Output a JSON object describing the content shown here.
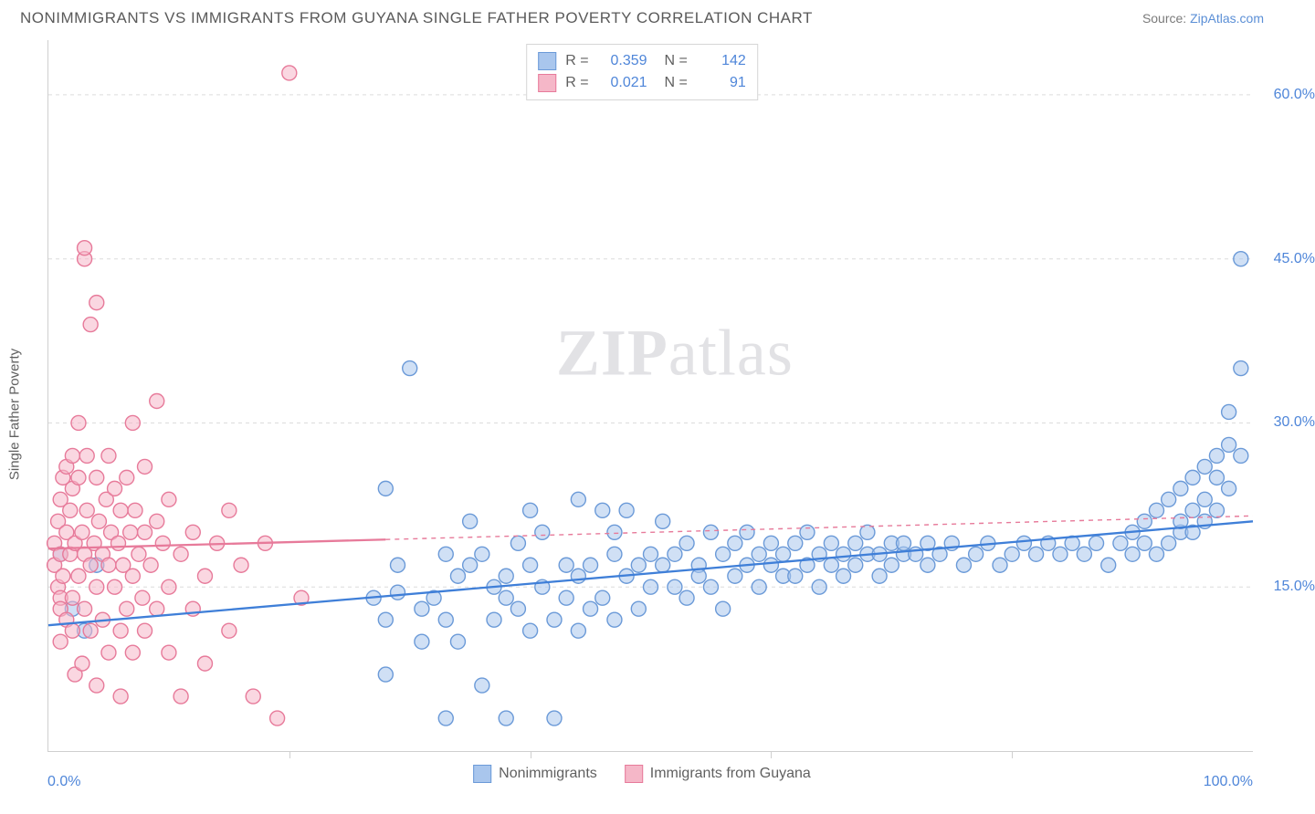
{
  "header": {
    "title": "NONIMMIGRANTS VS IMMIGRANTS FROM GUYANA SINGLE FATHER POVERTY CORRELATION CHART",
    "source_prefix": "Source: ",
    "source_link": "ZipAtlas.com"
  },
  "chart": {
    "type": "scatter",
    "ylabel": "Single Father Poverty",
    "xlim": [
      0,
      100
    ],
    "ylim": [
      0,
      65
    ],
    "x_tick_positions": [
      0,
      20,
      40,
      60,
      80,
      100
    ],
    "x_axis_labels": {
      "left": "0.0%",
      "right": "100.0%"
    },
    "y_grid": [
      {
        "value": 15.0,
        "label": "15.0%"
      },
      {
        "value": 30.0,
        "label": "30.0%"
      },
      {
        "value": 45.0,
        "label": "45.0%"
      },
      {
        "value": 60.0,
        "label": "60.0%"
      }
    ],
    "background_color": "#ffffff",
    "grid_color": "#dcdcdc",
    "axis_color": "#cfcfcf",
    "marker_radius": 8,
    "marker_stroke_width": 1.4,
    "line_width": 2.3,
    "watermark": "ZIPatlas",
    "series": [
      {
        "key": "nonimmigrants",
        "label": "Nonimmigrants",
        "fill_color": "#a9c6ed",
        "stroke_color": "#6b9ad8",
        "fill_opacity": 0.55,
        "line_color": "#3f7fd8",
        "R": "0.359",
        "N": "142",
        "trend": {
          "x1": 0,
          "y1": 11.5,
          "x2": 100,
          "y2": 21.0,
          "dashed_from_x": null
        },
        "points": [
          [
            1,
            18
          ],
          [
            2,
            13
          ],
          [
            3,
            11
          ],
          [
            4,
            17
          ],
          [
            27,
            14
          ],
          [
            28,
            7
          ],
          [
            28,
            24
          ],
          [
            29,
            14.5
          ],
          [
            29,
            17
          ],
          [
            30,
            35
          ],
          [
            31,
            10
          ],
          [
            31,
            13
          ],
          [
            32,
            14
          ],
          [
            33,
            3
          ],
          [
            33,
            12
          ],
          [
            34,
            16
          ],
          [
            34,
            10
          ],
          [
            35,
            17
          ],
          [
            35,
            21
          ],
          [
            36,
            18
          ],
          [
            36,
            6
          ],
          [
            37,
            15
          ],
          [
            37,
            12
          ],
          [
            38,
            16
          ],
          [
            38,
            14
          ],
          [
            38,
            3
          ],
          [
            39,
            19
          ],
          [
            39,
            13
          ],
          [
            40,
            22
          ],
          [
            40,
            11
          ],
          [
            40,
            17
          ],
          [
            41,
            15
          ],
          [
            41,
            20
          ],
          [
            42,
            12
          ],
          [
            42,
            3
          ],
          [
            43,
            17
          ],
          [
            43,
            14
          ],
          [
            44,
            23
          ],
          [
            44,
            11
          ],
          [
            44,
            16
          ],
          [
            45,
            17
          ],
          [
            45,
            13
          ],
          [
            46,
            22
          ],
          [
            46,
            14
          ],
          [
            47,
            18
          ],
          [
            47,
            12
          ],
          [
            47,
            20
          ],
          [
            48,
            16
          ],
          [
            48,
            22
          ],
          [
            49,
            17
          ],
          [
            49,
            13
          ],
          [
            50,
            18
          ],
          [
            50,
            15
          ],
          [
            51,
            21
          ],
          [
            51,
            17
          ],
          [
            52,
            15
          ],
          [
            52,
            18
          ],
          [
            53,
            19
          ],
          [
            53,
            14
          ],
          [
            54,
            17
          ],
          [
            54,
            16
          ],
          [
            55,
            20
          ],
          [
            55,
            15
          ],
          [
            56,
            18
          ],
          [
            56,
            13
          ],
          [
            57,
            19
          ],
          [
            57,
            16
          ],
          [
            58,
            17
          ],
          [
            58,
            20
          ],
          [
            59,
            18
          ],
          [
            59,
            15
          ],
          [
            60,
            19
          ],
          [
            60,
            17
          ],
          [
            61,
            18
          ],
          [
            61,
            16
          ],
          [
            62,
            19
          ],
          [
            62,
            16
          ],
          [
            63,
            17
          ],
          [
            63,
            20
          ],
          [
            64,
            18
          ],
          [
            64,
            15
          ],
          [
            65,
            19
          ],
          [
            65,
            17
          ],
          [
            66,
            18
          ],
          [
            66,
            16
          ],
          [
            67,
            19
          ],
          [
            67,
            17
          ],
          [
            68,
            18
          ],
          [
            68,
            20
          ],
          [
            69,
            18
          ],
          [
            69,
            16
          ],
          [
            70,
            19
          ],
          [
            70,
            17
          ],
          [
            71,
            18
          ],
          [
            71,
            19
          ],
          [
            72,
            18
          ],
          [
            73,
            19
          ],
          [
            73,
            17
          ],
          [
            74,
            18
          ],
          [
            75,
            19
          ],
          [
            76,
            17
          ],
          [
            77,
            18
          ],
          [
            78,
            19
          ],
          [
            79,
            17
          ],
          [
            80,
            18
          ],
          [
            81,
            19
          ],
          [
            82,
            18
          ],
          [
            83,
            19
          ],
          [
            84,
            18
          ],
          [
            85,
            19
          ],
          [
            86,
            18
          ],
          [
            87,
            19
          ],
          [
            88,
            17
          ],
          [
            89,
            19
          ],
          [
            90,
            18
          ],
          [
            90,
            20
          ],
          [
            91,
            19
          ],
          [
            91,
            21
          ],
          [
            92,
            18
          ],
          [
            92,
            22
          ],
          [
            93,
            19
          ],
          [
            93,
            23
          ],
          [
            94,
            20
          ],
          [
            94,
            21
          ],
          [
            94,
            24
          ],
          [
            95,
            20
          ],
          [
            95,
            22
          ],
          [
            95,
            25
          ],
          [
            96,
            21
          ],
          [
            96,
            23
          ],
          [
            96,
            26
          ],
          [
            97,
            22
          ],
          [
            97,
            25
          ],
          [
            97,
            27
          ],
          [
            98,
            24
          ],
          [
            98,
            28
          ],
          [
            98,
            31
          ],
          [
            99,
            27
          ],
          [
            99,
            35
          ],
          [
            99,
            45
          ],
          [
            28,
            12
          ],
          [
            33,
            18
          ]
        ]
      },
      {
        "key": "immigrants_guyana",
        "label": "Immigrants from Guyana",
        "fill_color": "#f5b7c8",
        "stroke_color": "#e77a9a",
        "fill_opacity": 0.55,
        "line_color": "#e77a9a",
        "R": "0.021",
        "N": "  91",
        "trend": {
          "x1": 0,
          "y1": 18.5,
          "x2": 100,
          "y2": 21.5,
          "dashed_from_x": 28
        },
        "points": [
          [
            0.5,
            17
          ],
          [
            0.5,
            19
          ],
          [
            0.8,
            15
          ],
          [
            0.8,
            21
          ],
          [
            1,
            14
          ],
          [
            1,
            18
          ],
          [
            1,
            23
          ],
          [
            1,
            13
          ],
          [
            1,
            10
          ],
          [
            1.2,
            25
          ],
          [
            1.2,
            16
          ],
          [
            1.5,
            20
          ],
          [
            1.5,
            12
          ],
          [
            1.5,
            26
          ],
          [
            1.8,
            18
          ],
          [
            1.8,
            22
          ],
          [
            2,
            14
          ],
          [
            2,
            24
          ],
          [
            2,
            27
          ],
          [
            2,
            11
          ],
          [
            2.2,
            19
          ],
          [
            2.2,
            7
          ],
          [
            2.5,
            16
          ],
          [
            2.5,
            25
          ],
          [
            2.5,
            30
          ],
          [
            2.8,
            20
          ],
          [
            2.8,
            8
          ],
          [
            3,
            18
          ],
          [
            3,
            13
          ],
          [
            3,
            45
          ],
          [
            3,
            46
          ],
          [
            3.2,
            22
          ],
          [
            3.2,
            27
          ],
          [
            3.5,
            17
          ],
          [
            3.5,
            11
          ],
          [
            3.5,
            39
          ],
          [
            3.8,
            19
          ],
          [
            4,
            15
          ],
          [
            4,
            25
          ],
          [
            4,
            41
          ],
          [
            4,
            6
          ],
          [
            4.2,
            21
          ],
          [
            4.5,
            18
          ],
          [
            4.5,
            12
          ],
          [
            4.8,
            23
          ],
          [
            5,
            17
          ],
          [
            5,
            9
          ],
          [
            5,
            27
          ],
          [
            5.2,
            20
          ],
          [
            5.5,
            15
          ],
          [
            5.5,
            24
          ],
          [
            5.8,
            19
          ],
          [
            6,
            11
          ],
          [
            6,
            22
          ],
          [
            6,
            5
          ],
          [
            6.2,
            17
          ],
          [
            6.5,
            13
          ],
          [
            6.5,
            25
          ],
          [
            6.8,
            20
          ],
          [
            7,
            16
          ],
          [
            7,
            9
          ],
          [
            7,
            30
          ],
          [
            7.2,
            22
          ],
          [
            7.5,
            18
          ],
          [
            7.8,
            14
          ],
          [
            8,
            20
          ],
          [
            8,
            11
          ],
          [
            8,
            26
          ],
          [
            8.5,
            17
          ],
          [
            9,
            32
          ],
          [
            9,
            13
          ],
          [
            9,
            21
          ],
          [
            9.5,
            19
          ],
          [
            10,
            15
          ],
          [
            10,
            9
          ],
          [
            10,
            23
          ],
          [
            11,
            18
          ],
          [
            11,
            5
          ],
          [
            12,
            20
          ],
          [
            12,
            13
          ],
          [
            13,
            16
          ],
          [
            13,
            8
          ],
          [
            14,
            19
          ],
          [
            15,
            11
          ],
          [
            15,
            22
          ],
          [
            16,
            17
          ],
          [
            17,
            5
          ],
          [
            18,
            19
          ],
          [
            19,
            3
          ],
          [
            20,
            62
          ],
          [
            21,
            14
          ]
        ]
      }
    ]
  },
  "legend_bottom": [
    {
      "label": "Nonimmigrants",
      "fill": "#a9c6ed",
      "stroke": "#6b9ad8"
    },
    {
      "label": "Immigrants from Guyana",
      "fill": "#f5b7c8",
      "stroke": "#e77a9a"
    }
  ]
}
